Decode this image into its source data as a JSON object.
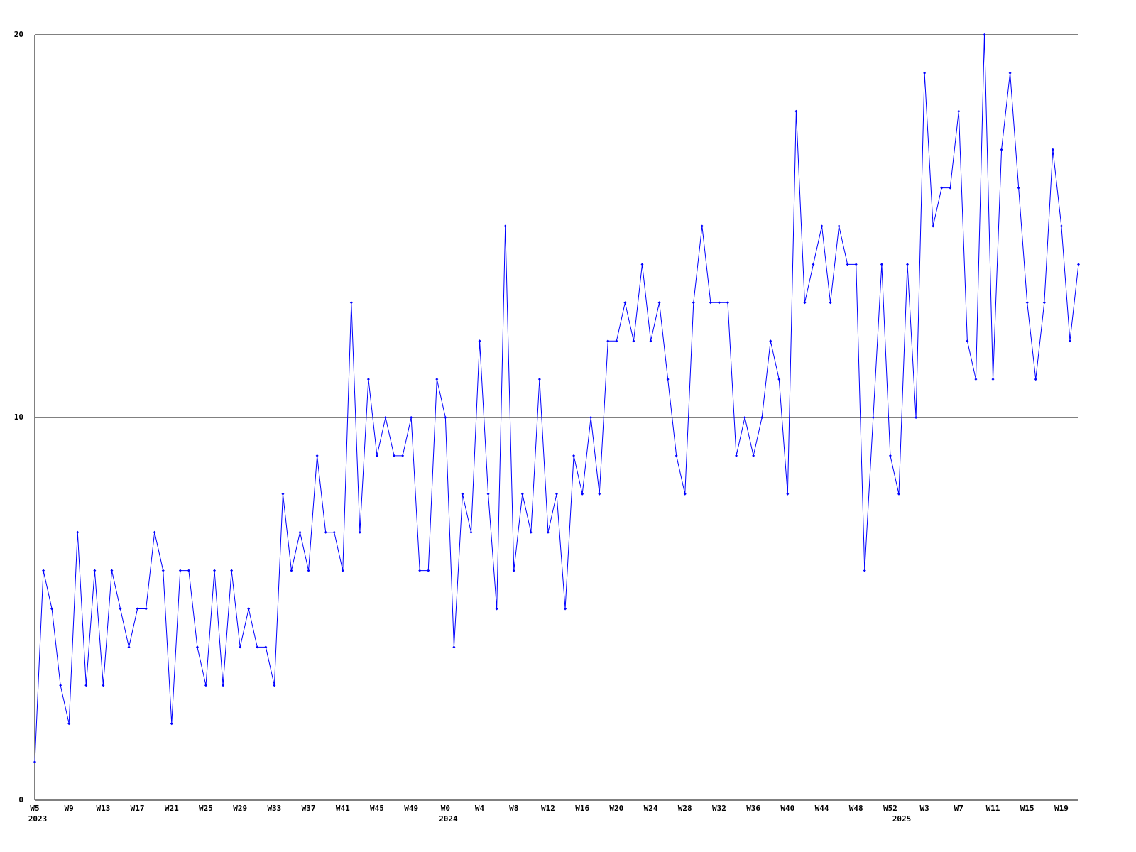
{
  "chart_data": {
    "type": "line",
    "categories": [
      "W5",
      null,
      null,
      null,
      "W9",
      null,
      null,
      null,
      "W13",
      null,
      null,
      null,
      "W17",
      null,
      null,
      null,
      "W21",
      null,
      null,
      null,
      "W25",
      null,
      null,
      null,
      "W29",
      null,
      null,
      null,
      "W33",
      null,
      null,
      null,
      "W37",
      null,
      null,
      null,
      "W41",
      null,
      null,
      null,
      "W45",
      null,
      null,
      null,
      "W49",
      null,
      null,
      null,
      "W0",
      null,
      null,
      null,
      "W4",
      null,
      null,
      null,
      "W8",
      null,
      null,
      null,
      "W12",
      null,
      null,
      null,
      "W16",
      null,
      null,
      null,
      "W20",
      null,
      null,
      null,
      "W24",
      null,
      null,
      null,
      "W28",
      null,
      null,
      null,
      "W32",
      null,
      null,
      null,
      "W36",
      null,
      null,
      null,
      "W40",
      null,
      null,
      null,
      "W44",
      null,
      null,
      null,
      "W48",
      null,
      null,
      null,
      "W52",
      null,
      null,
      null,
      "W3",
      null,
      null,
      null,
      "W7",
      null,
      null,
      null,
      "W11",
      null,
      null,
      null,
      "W15",
      null,
      null,
      null,
      "W19",
      null,
      null
    ],
    "years": [
      "2023",
      null,
      null,
      null,
      null,
      null,
      null,
      null,
      null,
      null,
      null,
      null,
      null,
      null,
      null,
      null,
      null,
      null,
      null,
      null,
      null,
      null,
      null,
      null,
      null,
      null,
      null,
      null,
      null,
      null,
      null,
      null,
      null,
      null,
      null,
      null,
      null,
      null,
      null,
      null,
      null,
      null,
      null,
      null,
      null,
      null,
      null,
      null,
      "2024",
      null,
      null,
      null,
      null,
      null,
      null,
      null,
      null,
      null,
      null,
      null,
      null,
      null,
      null,
      null,
      null,
      null,
      null,
      null,
      null,
      null,
      null,
      null,
      null,
      null,
      null,
      null,
      null,
      null,
      null,
      null,
      null,
      null,
      null,
      null,
      null,
      null,
      null,
      null,
      null,
      null,
      null,
      null,
      null,
      null,
      null,
      null,
      null,
      null,
      null,
      null,
      null,
      "2025",
      null,
      null,
      null,
      null,
      null,
      null,
      null,
      null,
      null,
      null,
      null,
      null,
      null,
      null,
      null,
      null,
      null,
      null,
      null,
      null,
      null
    ],
    "series": [
      {
        "color": "#0000ff",
        "values": [
          1,
          6,
          5,
          3,
          2,
          7,
          3,
          6,
          3,
          6,
          5,
          4,
          5,
          5,
          7,
          6,
          2,
          6,
          6,
          4,
          3,
          6,
          3,
          6,
          4,
          5,
          4,
          4,
          3,
          8,
          6,
          7,
          6,
          9,
          7,
          7,
          6,
          13,
          7,
          11,
          9,
          10,
          9,
          9,
          10,
          6,
          6,
          11,
          10,
          4,
          8,
          7,
          12,
          8,
          5,
          15,
          6,
          8,
          7,
          11,
          7,
          8,
          5,
          9,
          8,
          10,
          8,
          12,
          12,
          13,
          12,
          14,
          12,
          13,
          11,
          9,
          8,
          13,
          15,
          13,
          13,
          13,
          9,
          10,
          9,
          10,
          12,
          11,
          8,
          18,
          13,
          14,
          15,
          13,
          15,
          14,
          14,
          6,
          10,
          14,
          9,
          8,
          14,
          10,
          19,
          15,
          16,
          16,
          18,
          12,
          11,
          20,
          11,
          17,
          19,
          16,
          13,
          11,
          13,
          17,
          15,
          12,
          14
        ]
      }
    ],
    "ylim": [
      0,
      20
    ],
    "yticks": [
      0,
      10,
      20
    ],
    "grid": true
  }
}
